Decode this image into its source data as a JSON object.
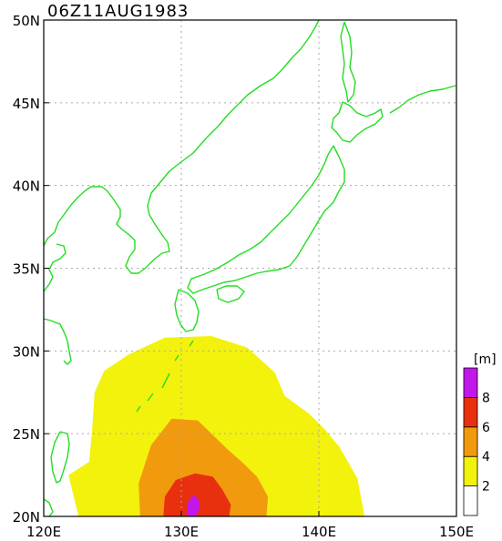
{
  "title": "06Z11AUG1983",
  "colorbar": {
    "unit": "[m]",
    "levels": [
      {
        "label": "",
        "color": "#ffffff"
      },
      {
        "label": "2",
        "color": "#f2f20d"
      },
      {
        "label": "4",
        "color": "#f29a0d"
      },
      {
        "label": "6",
        "color": "#e8300f"
      },
      {
        "label": "8",
        "color": "#c217ea"
      }
    ]
  },
  "axes": {
    "lon_range": [
      120,
      150
    ],
    "lat_range": [
      20,
      50
    ],
    "x_ticks": [
      "120E",
      "130E",
      "140E",
      "150E"
    ],
    "y_ticks": [
      "20N",
      "25N",
      "30N",
      "35N",
      "40N",
      "45N",
      "50N"
    ],
    "grid": true
  },
  "colors": {
    "coastline": "#22dd22",
    "grid": "#aaaaaa",
    "frame": "#000000"
  },
  "chart_data": {
    "type": "heatmap",
    "title": "06Z11AUG1983",
    "description_levels": [
      2,
      4,
      6,
      8
    ],
    "unit": "[m]",
    "contours": [
      {
        "level": 2,
        "points": [
          [
            122.5,
            20.1
          ],
          [
            121.8,
            22.5
          ],
          [
            123.3,
            23.3
          ],
          [
            123.5,
            25
          ],
          [
            123.7,
            27.5
          ],
          [
            124.4,
            28.8
          ],
          [
            126.2,
            29.8
          ],
          [
            128.8,
            30.8
          ],
          [
            132.2,
            30.9
          ],
          [
            134.8,
            30.2
          ],
          [
            136.8,
            28.7
          ],
          [
            137.5,
            27.3
          ],
          [
            139.3,
            26.2
          ],
          [
            140.4,
            25.3
          ],
          [
            141.5,
            24.2
          ],
          [
            142.8,
            22.3
          ],
          [
            143.3,
            20.1
          ]
        ]
      },
      {
        "level": 4,
        "points": [
          [
            127,
            20.1
          ],
          [
            126.9,
            22
          ],
          [
            127.8,
            24.3
          ],
          [
            129.3,
            25.9
          ],
          [
            131.2,
            25.8
          ],
          [
            132.2,
            25
          ],
          [
            133.3,
            24.1
          ],
          [
            134.4,
            23.3
          ],
          [
            135.5,
            22.4
          ],
          [
            136.3,
            21.2
          ],
          [
            136.2,
            20.1
          ]
        ]
      },
      {
        "level": 6,
        "points": [
          [
            128.7,
            20.1
          ],
          [
            128.8,
            21.2
          ],
          [
            129.6,
            22.2
          ],
          [
            131,
            22.6
          ],
          [
            132.3,
            22.4
          ],
          [
            133,
            21.6
          ],
          [
            133.6,
            20.7
          ],
          [
            133.5,
            20.1
          ]
        ]
      },
      {
        "level": 8,
        "points": [
          [
            130.4,
            20.1
          ],
          [
            130.5,
            20.9
          ],
          [
            130.9,
            21.3
          ],
          [
            131.3,
            21
          ],
          [
            131.3,
            20.4
          ],
          [
            131.1,
            20.1
          ]
        ]
      }
    ]
  }
}
